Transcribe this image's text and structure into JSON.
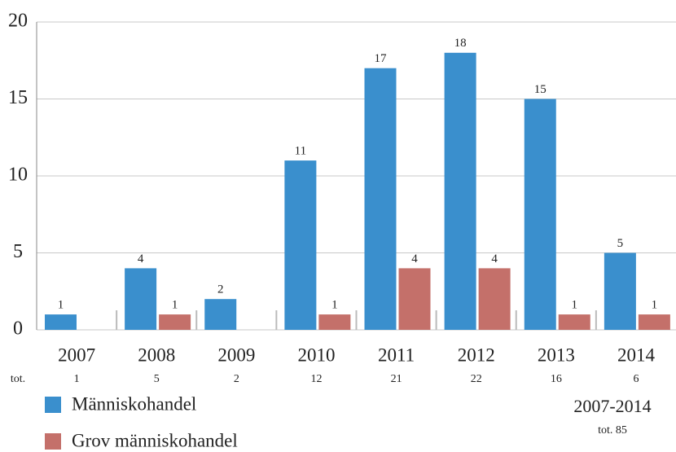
{
  "chart_data": {
    "type": "bar",
    "categories": [
      "2007",
      "2008",
      "2009",
      "2010",
      "2011",
      "2012",
      "2013",
      "2014"
    ],
    "series": [
      {
        "name": "Människohandel",
        "color": "#3a8fcd",
        "values": [
          1,
          4,
          2,
          11,
          17,
          18,
          15,
          5
        ]
      },
      {
        "name": "Grov människohandel",
        "color": "#c4706a",
        "values": [
          null,
          1,
          null,
          1,
          4,
          4,
          1,
          1
        ]
      }
    ],
    "totals_label": "tot.",
    "totals": [
      1,
      5,
      2,
      12,
      21,
      22,
      16,
      6
    ],
    "annotation": {
      "title": "2007-2014",
      "total": "tot. 85"
    },
    "ylim": [
      0,
      20
    ],
    "yticks": [
      0,
      5,
      10,
      15,
      20
    ],
    "grid": true
  }
}
